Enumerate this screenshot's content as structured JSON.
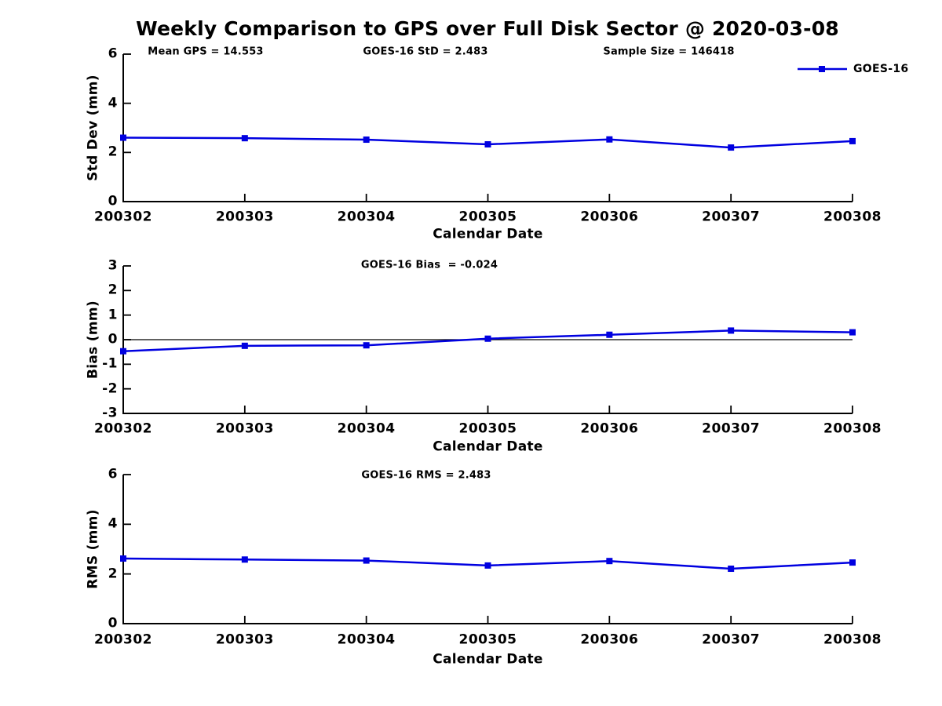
{
  "title": "Weekly Comparison to GPS over Full Disk Sector @ 2020-03-08",
  "legend": {
    "label": "GOES-16",
    "color": "#0000e0",
    "position": "top-right"
  },
  "colors": {
    "line": "#0000e0",
    "axis": "#000000",
    "zero_line": "#000000",
    "background": "#ffffff",
    "text": "#000000"
  },
  "chart_data": [
    {
      "id": "stddev",
      "type": "line",
      "marker": "square",
      "categories": [
        "200302",
        "200303",
        "200304",
        "200305",
        "200306",
        "200307",
        "200308"
      ],
      "series": [
        {
          "name": "GOES-16",
          "values": [
            2.6,
            2.58,
            2.52,
            2.33,
            2.53,
            2.2,
            2.46
          ]
        }
      ],
      "xlabel": "Calendar Date",
      "ylabel": "Std Dev (mm)",
      "ylim": [
        0,
        6
      ],
      "yticks": [
        0,
        2,
        4,
        6
      ],
      "grid": false,
      "legend_position": "top-right",
      "annotations": [
        {
          "text": "Mean GPS = 14.553"
        },
        {
          "text": "GOES-16 StD = 2.483"
        },
        {
          "text": "Sample Size = 146418"
        }
      ]
    },
    {
      "id": "bias",
      "type": "line",
      "marker": "square",
      "categories": [
        "200302",
        "200303",
        "200304",
        "200305",
        "200306",
        "200307",
        "200308"
      ],
      "series": [
        {
          "name": "GOES-16",
          "values": [
            -0.47,
            -0.25,
            -0.23,
            0.04,
            0.2,
            0.37,
            0.3
          ]
        }
      ],
      "xlabel": "Calendar Date",
      "ylabel": "Bias (mm)",
      "ylim": [
        -3,
        3
      ],
      "yticks": [
        -3,
        -2,
        -1,
        0,
        1,
        2,
        3
      ],
      "zero_line": true,
      "grid": false,
      "annotations": [
        {
          "text": "GOES-16 Bias  = -0.024"
        }
      ]
    },
    {
      "id": "rms",
      "type": "line",
      "marker": "square",
      "categories": [
        "200302",
        "200303",
        "200304",
        "200305",
        "200306",
        "200307",
        "200308"
      ],
      "series": [
        {
          "name": "GOES-16",
          "values": [
            2.62,
            2.58,
            2.54,
            2.34,
            2.52,
            2.21,
            2.46
          ]
        }
      ],
      "xlabel": "Calendar Date",
      "ylabel": "RMS (mm)",
      "ylim": [
        0,
        6
      ],
      "yticks": [
        0,
        2,
        4,
        6
      ],
      "grid": false,
      "annotations": [
        {
          "text": "GOES-16 RMS = 2.483"
        }
      ]
    }
  ]
}
